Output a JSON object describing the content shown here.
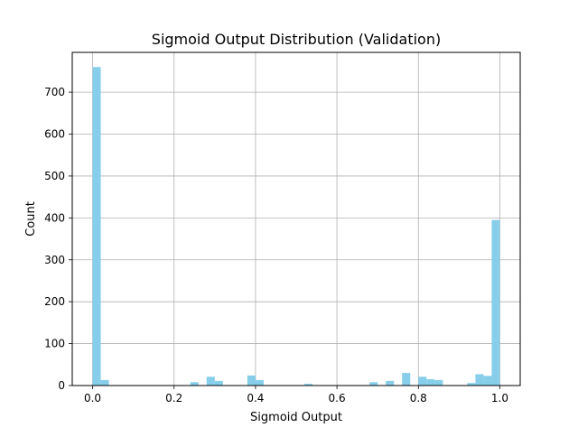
{
  "chart_data": {
    "type": "bar",
    "title": "Sigmoid Output Distribution (Validation)",
    "xlabel": "Sigmoid Output",
    "ylabel": "Count",
    "bar_color": "#87ceeb",
    "grid": true,
    "legend": "none",
    "xlim": [
      -0.05,
      1.05
    ],
    "ylim": [
      0,
      795
    ],
    "xticks": [
      "0.0",
      "0.2",
      "0.4",
      "0.6",
      "0.8",
      "1.0"
    ],
    "yticks": [
      "0",
      "100",
      "200",
      "300",
      "400",
      "500",
      "600",
      "700"
    ],
    "bin_width": 0.02,
    "bins": [
      {
        "x": 0.0,
        "count": 760
      },
      {
        "x": 0.02,
        "count": 13
      },
      {
        "x": 0.24,
        "count": 8
      },
      {
        "x": 0.28,
        "count": 21
      },
      {
        "x": 0.3,
        "count": 11
      },
      {
        "x": 0.38,
        "count": 24
      },
      {
        "x": 0.4,
        "count": 13
      },
      {
        "x": 0.52,
        "count": 4
      },
      {
        "x": 0.68,
        "count": 8
      },
      {
        "x": 0.72,
        "count": 11
      },
      {
        "x": 0.76,
        "count": 30
      },
      {
        "x": 0.8,
        "count": 21
      },
      {
        "x": 0.82,
        "count": 15
      },
      {
        "x": 0.84,
        "count": 13
      },
      {
        "x": 0.92,
        "count": 6
      },
      {
        "x": 0.94,
        "count": 27
      },
      {
        "x": 0.96,
        "count": 23
      },
      {
        "x": 0.98,
        "count": 395
      }
    ]
  }
}
